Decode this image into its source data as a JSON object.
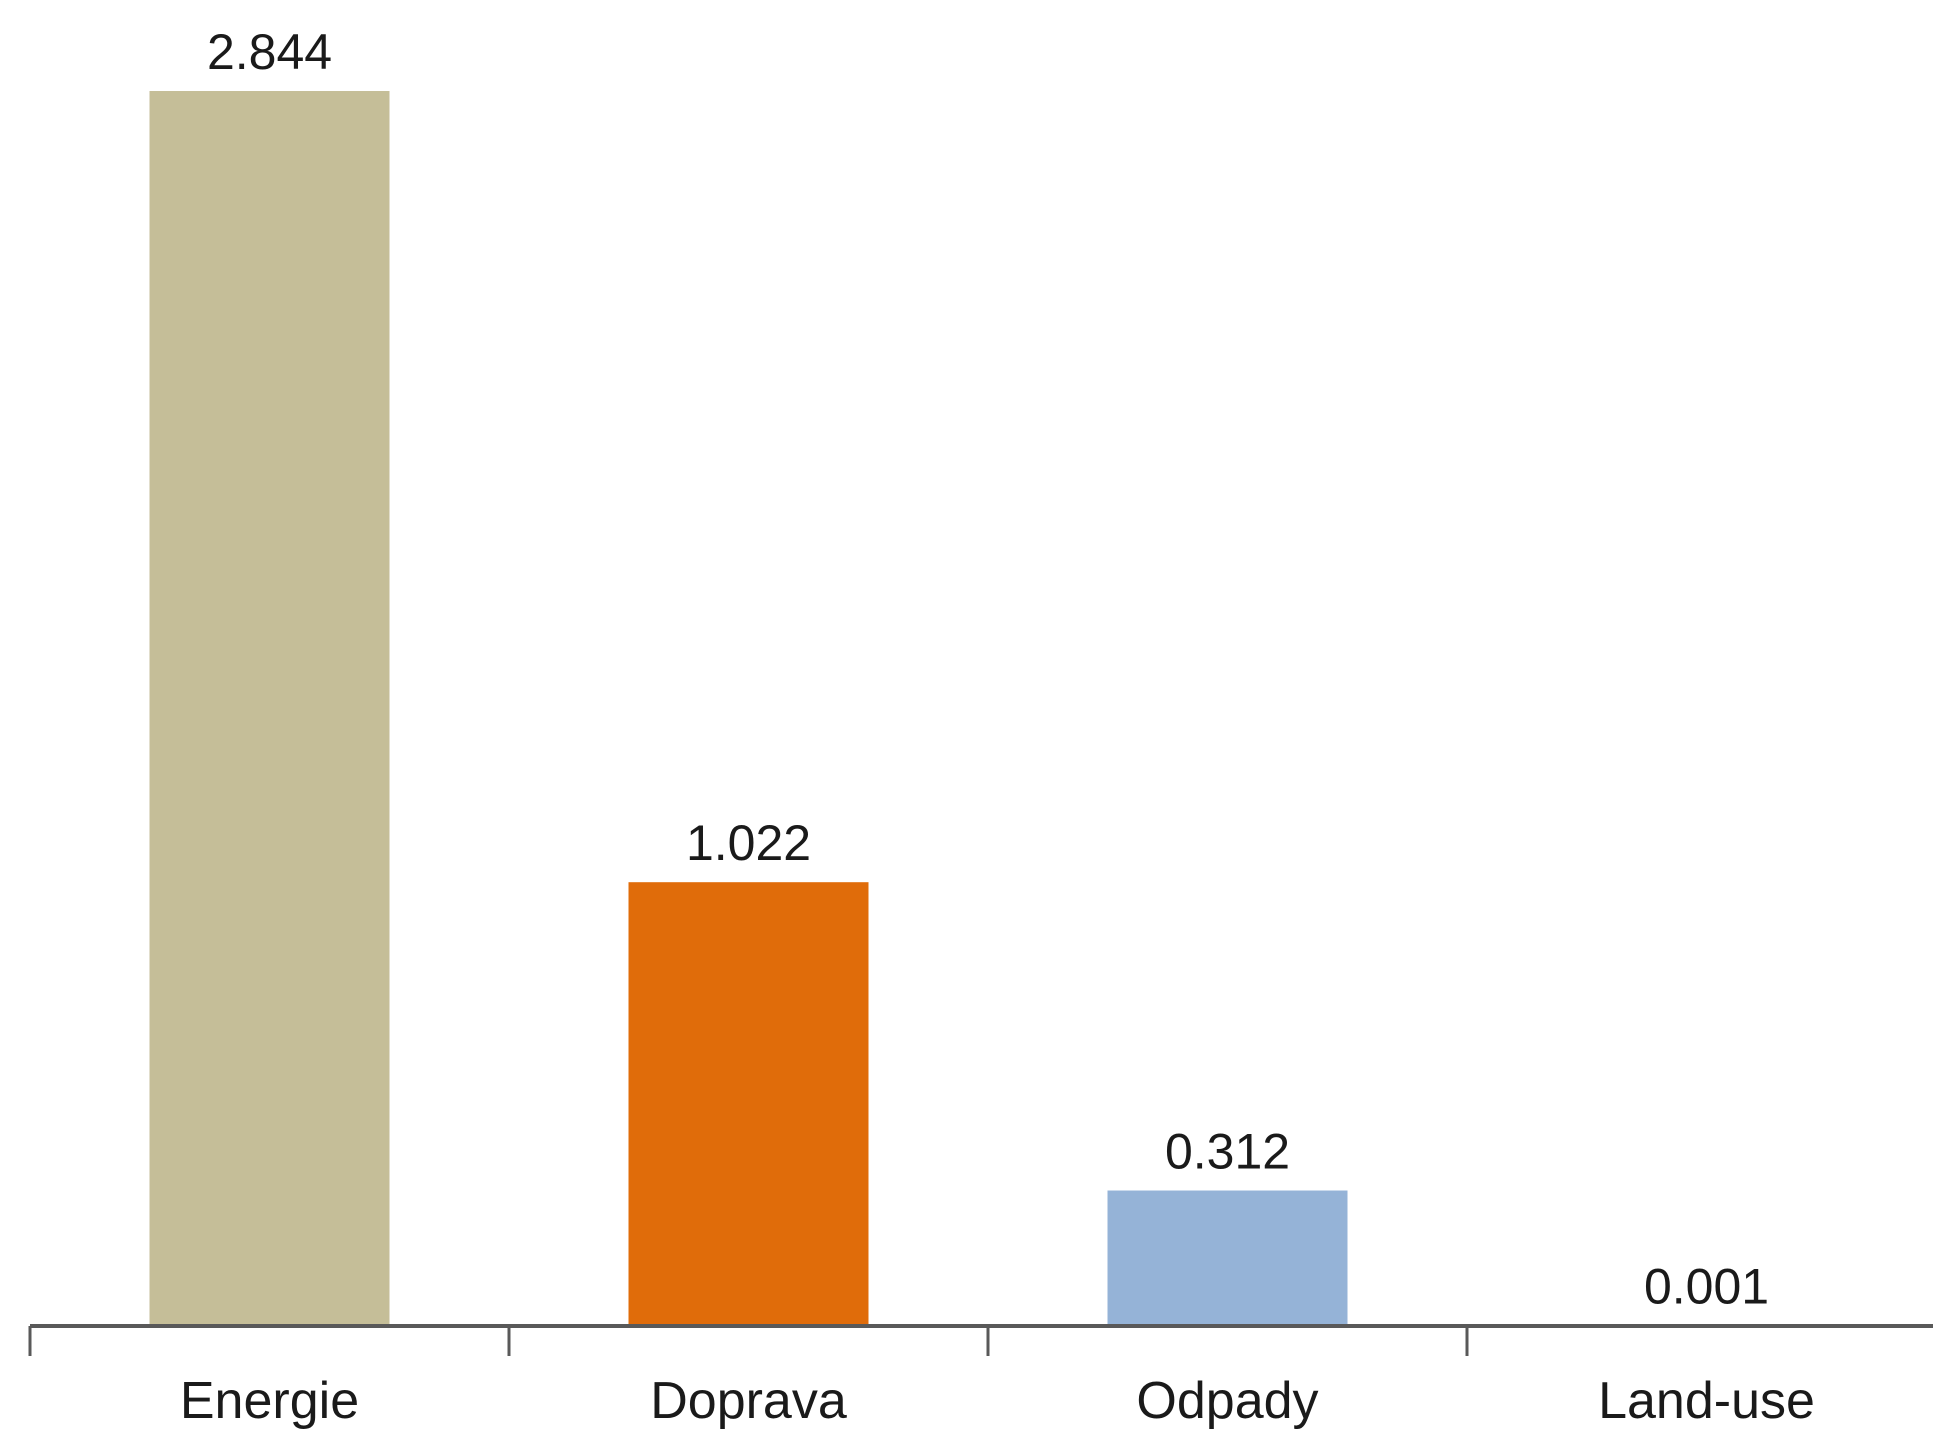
{
  "chart_data": {
    "type": "bar",
    "title": "",
    "xlabel": "",
    "ylabel": "",
    "categories": [
      "Energie",
      "Doprava",
      "Odpady",
      "Land-use"
    ],
    "values": [
      2.844,
      1.022,
      0.312,
      0.001
    ],
    "data_labels": [
      "2.844",
      "1.022",
      "0.312",
      "0.001"
    ],
    "colors": [
      "#c5be98",
      "#e06c0a",
      "#95b3d7",
      "#95b3d7"
    ],
    "ylim": [
      0,
      2.844
    ],
    "grid": false,
    "legend": "none",
    "axis_color": "#595959"
  }
}
